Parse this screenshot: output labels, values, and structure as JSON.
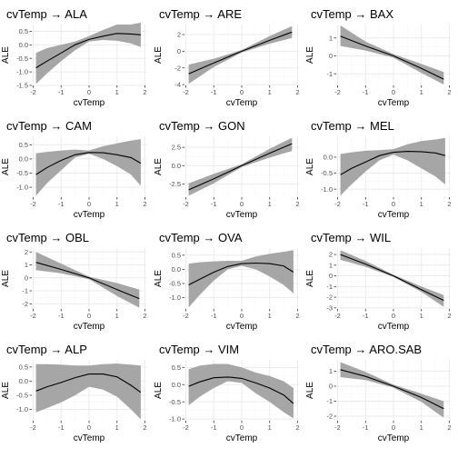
{
  "colors": {
    "panel_bg": "#ffffff",
    "grid_major": "#ebebeb",
    "grid_minor": "#f5f5f5",
    "band": "#a6a6a6",
    "line": "#000000",
    "text": "#000000",
    "tick_text": "#4d4d4d"
  },
  "chart_data": [
    {
      "type": "line",
      "title": "cvTemp → ALA",
      "xlabel": "cvTemp",
      "ylabel": "ALE",
      "xlim": [
        -2.05,
        2.05
      ],
      "ylim": [
        -1.5,
        0.75
      ],
      "xticks": [
        -2,
        -1,
        0,
        1,
        2
      ],
      "yticks": [
        -1.5,
        -1.0,
        -0.5,
        0.0,
        0.5
      ],
      "ytick_labels": [
        "-1.5",
        "-1.0",
        "-0.5",
        "0.0",
        "0.5"
      ],
      "x": [
        -1.9,
        -1.5,
        -1.0,
        -0.5,
        0.0,
        0.5,
        1.0,
        1.5,
        1.85
      ],
      "y": [
        -0.85,
        -0.6,
        -0.3,
        0.0,
        0.2,
        0.32,
        0.42,
        0.4,
        0.37
      ],
      "lower": [
        -1.45,
        -1.05,
        -0.6,
        -0.2,
        0.12,
        0.18,
        0.15,
        0.05,
        -0.08
      ],
      "upper": [
        -0.3,
        -0.12,
        0.0,
        0.12,
        0.32,
        0.55,
        0.75,
        0.75,
        0.82
      ]
    },
    {
      "type": "line",
      "title": "cvTemp → ARE",
      "xlabel": "cvTemp",
      "ylabel": "ALE",
      "xlim": [
        -2.05,
        2.05
      ],
      "ylim": [
        -4.1,
        3.2
      ],
      "xticks": [
        -2,
        -1,
        0,
        1,
        2
      ],
      "yticks": [
        -4,
        -2,
        0,
        2
      ],
      "ytick_labels": [
        "-4",
        "-2",
        "0",
        "2"
      ],
      "x": [
        -1.9,
        -1.0,
        0.0,
        1.0,
        1.8
      ],
      "y": [
        -2.7,
        -1.4,
        0.0,
        1.3,
        2.3
      ],
      "lower": [
        -3.9,
        -1.9,
        -0.15,
        0.9,
        1.6
      ],
      "upper": [
        -1.6,
        -0.9,
        0.15,
        1.8,
        3.0
      ]
    },
    {
      "type": "line",
      "title": "cvTemp → BAX",
      "xlabel": "cvTemp",
      "ylabel": "ALE",
      "xlim": [
        -2.05,
        2.05
      ],
      "ylim": [
        -1.65,
        1.75
      ],
      "xticks": [
        -2,
        -1,
        0,
        1,
        2
      ],
      "yticks": [
        -1,
        0,
        1
      ],
      "ytick_labels": [
        "-1",
        "0",
        "1"
      ],
      "x": [
        -1.9,
        -1.0,
        0.0,
        1.0,
        1.8
      ],
      "y": [
        1.1,
        0.55,
        0.0,
        -0.7,
        -1.3
      ],
      "lower": [
        0.55,
        0.3,
        -0.1,
        -0.95,
        -1.6
      ],
      "upper": [
        1.7,
        0.8,
        0.1,
        -0.45,
        -0.9
      ]
    },
    {
      "type": "line",
      "title": "cvTemp → CAM",
      "xlabel": "cvTemp",
      "ylabel": "ALE",
      "xlim": [
        -2.05,
        2.05
      ],
      "ylim": [
        -1.35,
        0.8
      ],
      "xticks": [
        -2,
        -1,
        0,
        1,
        2
      ],
      "yticks": [
        -1.0,
        -0.5,
        0.0,
        0.5
      ],
      "ytick_labels": [
        "-1.0",
        "-0.5",
        "0.0",
        "0.5"
      ],
      "x": [
        -1.9,
        -1.5,
        -1.0,
        -0.5,
        0.0,
        0.5,
        1.0,
        1.5,
        1.85
      ],
      "y": [
        -0.55,
        -0.3,
        -0.05,
        0.15,
        0.23,
        0.22,
        0.15,
        0.05,
        -0.15
      ],
      "lower": [
        -1.3,
        -0.85,
        -0.4,
        0.05,
        0.18,
        0.0,
        -0.25,
        -0.55,
        -0.95
      ],
      "upper": [
        0.2,
        0.25,
        0.3,
        0.33,
        0.3,
        0.45,
        0.55,
        0.65,
        0.7
      ]
    },
    {
      "type": "line",
      "title": "cvTemp → GON",
      "xlabel": "cvTemp",
      "ylabel": "ALE",
      "xlim": [
        -2.05,
        2.05
      ],
      "ylim": [
        -4.3,
        4.0
      ],
      "xticks": [
        -2,
        -1,
        0,
        1,
        2
      ],
      "yticks": [
        -2.5,
        0.0,
        2.5
      ],
      "ytick_labels": [
        "-2.5",
        "0.0",
        "2.5"
      ],
      "x": [
        -1.9,
        -1.0,
        0.0,
        1.0,
        1.8
      ],
      "y": [
        -3.3,
        -1.8,
        0.0,
        1.7,
        3.0
      ],
      "lower": [
        -4.1,
        -2.4,
        -0.2,
        1.1,
        2.0
      ],
      "upper": [
        -2.4,
        -1.1,
        0.2,
        2.3,
        3.8
      ]
    },
    {
      "type": "line",
      "title": "cvTemp → MEL",
      "xlabel": "cvTemp",
      "ylabel": "ALE",
      "xlim": [
        -2.05,
        2.05
      ],
      "ylim": [
        -1.25,
        0.65
      ],
      "xticks": [
        -2,
        -1,
        0,
        1,
        2
      ],
      "yticks": [
        -1.0,
        -0.5,
        0.0
      ],
      "ytick_labels": [
        "-1.0",
        "-0.5",
        "0.0"
      ],
      "x": [
        -1.9,
        -1.5,
        -1.0,
        -0.5,
        0.0,
        0.5,
        1.0,
        1.5,
        1.85
      ],
      "y": [
        -0.55,
        -0.35,
        -0.15,
        0.05,
        0.15,
        0.18,
        0.17,
        0.13,
        0.05
      ],
      "lower": [
        -1.2,
        -0.85,
        -0.45,
        -0.1,
        0.08,
        -0.1,
        -0.35,
        -0.6,
        -0.85
      ],
      "upper": [
        0.1,
        0.15,
        0.2,
        0.22,
        0.25,
        0.4,
        0.5,
        0.55,
        0.6
      ]
    },
    {
      "type": "line",
      "title": "cvTemp → OBL",
      "xlabel": "cvTemp",
      "ylabel": "ALE",
      "xlim": [
        -2.05,
        2.05
      ],
      "ylim": [
        -2.4,
        2.3
      ],
      "xticks": [
        -2,
        -1,
        0,
        1,
        2
      ],
      "yticks": [
        -2,
        -1,
        0,
        1,
        2
      ],
      "ytick_labels": [
        "-2",
        "-1",
        "0",
        "1",
        "2"
      ],
      "x": [
        -1.9,
        -1.0,
        0.0,
        1.0,
        1.8
      ],
      "y": [
        1.2,
        0.65,
        0.0,
        -0.9,
        -1.6
      ],
      "lower": [
        0.6,
        0.35,
        -0.1,
        -1.4,
        -2.3
      ],
      "upper": [
        2.0,
        1.1,
        0.1,
        -0.4,
        -0.9
      ]
    },
    {
      "type": "line",
      "title": "cvTemp → OVA",
      "xlabel": "cvTemp",
      "ylabel": "ALE",
      "xlim": [
        -2.05,
        2.05
      ],
      "ylim": [
        -1.4,
        0.75
      ],
      "xticks": [
        -2,
        -1,
        0,
        1,
        2
      ],
      "yticks": [
        -1.0,
        -0.5,
        0.0,
        0.5
      ],
      "ytick_labels": [
        "-1.0",
        "-0.5",
        "0.0",
        "0.5"
      ],
      "x": [
        -1.9,
        -1.5,
        -1.0,
        -0.5,
        0.0,
        0.5,
        1.0,
        1.5,
        1.85
      ],
      "y": [
        -0.55,
        -0.35,
        -0.1,
        0.1,
        0.2,
        0.22,
        0.2,
        0.12,
        -0.1
      ],
      "lower": [
        -1.35,
        -0.9,
        -0.4,
        0.0,
        0.12,
        0.0,
        -0.25,
        -0.55,
        -0.85
      ],
      "upper": [
        0.2,
        0.25,
        0.28,
        0.3,
        0.3,
        0.45,
        0.55,
        0.62,
        0.68
      ]
    },
    {
      "type": "line",
      "title": "cvTemp → WIL",
      "xlabel": "cvTemp",
      "ylabel": "ALE",
      "xlim": [
        -2.05,
        2.05
      ],
      "ylim": [
        -3.1,
        2.6
      ],
      "xticks": [
        -2,
        -1,
        0,
        1,
        2
      ],
      "yticks": [
        -3,
        -2,
        -1,
        0,
        1,
        2
      ],
      "ytick_labels": [
        "-3",
        "-2",
        "-1",
        "0",
        "1",
        "2"
      ],
      "x": [
        -1.9,
        -1.0,
        0.0,
        1.0,
        1.8
      ],
      "y": [
        2.0,
        1.1,
        0.0,
        -1.3,
        -2.3
      ],
      "lower": [
        1.5,
        0.85,
        -0.1,
        -1.5,
        -2.9
      ],
      "upper": [
        2.4,
        1.4,
        0.1,
        -1.0,
        -1.8
      ]
    },
    {
      "type": "line",
      "title": "cvTemp → ALP",
      "xlabel": "cvTemp",
      "ylabel": "ALE",
      "xlim": [
        -2.05,
        2.05
      ],
      "ylim": [
        -1.4,
        0.75
      ],
      "xticks": [
        -2,
        -1,
        0,
        1,
        2
      ],
      "yticks": [
        -1.0,
        -0.5,
        0.0,
        0.5
      ],
      "ytick_labels": [
        "-1.0",
        "-0.5",
        "0.0",
        "0.5"
      ],
      "x": [
        -1.9,
        -1.5,
        -1.0,
        -0.5,
        0.0,
        0.5,
        1.0,
        1.5,
        1.85
      ],
      "y": [
        -0.35,
        -0.2,
        -0.05,
        0.12,
        0.25,
        0.25,
        0.15,
        -0.15,
        -0.4
      ],
      "lower": [
        -1.1,
        -0.95,
        -0.75,
        -0.5,
        -0.2,
        -0.3,
        -0.55,
        -1.0,
        -1.35
      ],
      "upper": [
        0.6,
        0.6,
        0.58,
        0.55,
        0.55,
        0.6,
        0.62,
        0.58,
        0.55
      ]
    },
    {
      "type": "line",
      "title": "cvTemp → VIM",
      "xlabel": "cvTemp",
      "ylabel": "ALE",
      "xlim": [
        -2.05,
        2.05
      ],
      "ylim": [
        -1.05,
        0.72
      ],
      "xticks": [
        -2,
        -1,
        0,
        1,
        2
      ],
      "yticks": [
        -1.0,
        -0.5,
        0.0,
        0.5
      ],
      "ytick_labels": [
        "-1.0",
        "-0.5",
        "0.0",
        "0.5"
      ],
      "x": [
        -1.9,
        -1.5,
        -1.0,
        -0.5,
        0.0,
        0.5,
        1.0,
        1.5,
        1.85
      ],
      "y": [
        -0.05,
        0.08,
        0.2,
        0.22,
        0.18,
        0.05,
        -0.1,
        -0.3,
        -0.55
      ],
      "lower": [
        -0.6,
        -0.35,
        -0.1,
        0.1,
        0.05,
        -0.25,
        -0.5,
        -0.8,
        -0.98
      ],
      "upper": [
        0.45,
        0.55,
        0.6,
        0.6,
        0.5,
        0.35,
        0.25,
        0.1,
        -0.1
      ]
    },
    {
      "type": "line",
      "title": "cvTemp → ARO.SAB",
      "xlabel": "cvTemp",
      "ylabel": "ALE",
      "xlim": [
        -2.05,
        2.05
      ],
      "ylim": [
        -2.3,
        1.75
      ],
      "xticks": [
        -2,
        -1,
        0,
        1,
        2
      ],
      "yticks": [
        -2,
        -1,
        0,
        1
      ],
      "ytick_labels": [
        "-2",
        "-1",
        "0",
        "1"
      ],
      "x": [
        -1.9,
        -1.0,
        0.0,
        1.0,
        1.8
      ],
      "y": [
        1.1,
        0.65,
        0.0,
        -0.75,
        -1.5
      ],
      "lower": [
        0.6,
        0.4,
        -0.1,
        -1.05,
        -2.1
      ],
      "upper": [
        1.6,
        0.95,
        0.1,
        -0.5,
        -1.0
      ]
    }
  ]
}
